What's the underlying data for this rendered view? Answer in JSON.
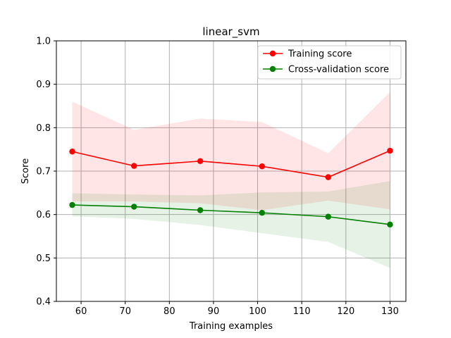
{
  "chart_data": {
    "type": "line",
    "title": "linear_svm",
    "xlabel": "Training examples",
    "ylabel": "Score",
    "xlim": [
      54.4,
      133.6
    ],
    "ylim": [
      0.4,
      1.0
    ],
    "xticks": [
      60,
      70,
      80,
      90,
      100,
      110,
      120,
      130
    ],
    "yticks": [
      0.4,
      0.5,
      0.6,
      0.7,
      0.8,
      0.9,
      1.0
    ],
    "xtick_labels": [
      "60",
      "70",
      "80",
      "90",
      "100",
      "110",
      "120",
      "130"
    ],
    "ytick_labels": [
      "0.4",
      "0.5",
      "0.6",
      "0.7",
      "0.8",
      "0.9",
      "1.0"
    ],
    "grid": true,
    "legend_position": "top-right",
    "x": [
      58,
      72,
      87,
      101,
      116,
      130
    ],
    "series": [
      {
        "name": "Training score",
        "color": "#ff0000",
        "band_color": "#ff0000",
        "values": [
          0.745,
          0.712,
          0.723,
          0.711,
          0.686,
          0.747
        ],
        "lower": [
          0.63,
          0.63,
          0.626,
          0.61,
          0.632,
          0.612
        ],
        "upper": [
          0.86,
          0.795,
          0.821,
          0.813,
          0.741,
          0.882
        ]
      },
      {
        "name": "Cross-validation score",
        "color": "#008000",
        "band_color": "#008000",
        "values": [
          0.622,
          0.618,
          0.61,
          0.604,
          0.595,
          0.577
        ],
        "lower": [
          0.596,
          0.59,
          0.576,
          0.557,
          0.537,
          0.477
        ],
        "upper": [
          0.649,
          0.646,
          0.644,
          0.651,
          0.653,
          0.677
        ]
      }
    ]
  }
}
